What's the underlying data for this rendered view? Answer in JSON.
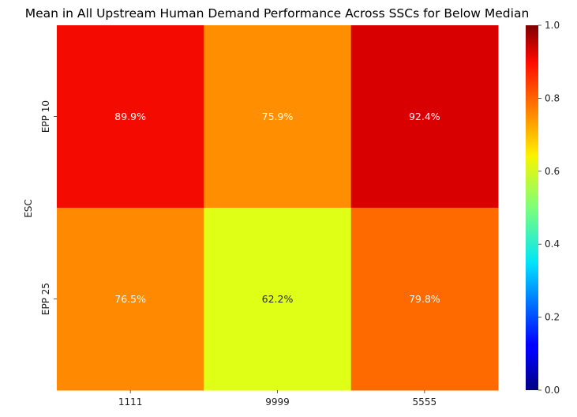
{
  "chart_data": {
    "type": "heatmap",
    "title": "Mean in All Upstream Human Demand Performance Across SSCs for Below Median",
    "xlabel": "",
    "ylabel": "ESC",
    "x_categories": [
      "1111",
      "9999",
      "5555"
    ],
    "y_categories": [
      "EPP 10",
      "EPP 25"
    ],
    "values": [
      [
        0.899,
        0.759,
        0.924
      ],
      [
        0.765,
        0.622,
        0.798
      ]
    ],
    "cell_labels": [
      [
        "89.9%",
        "75.9%",
        "92.4%"
      ],
      [
        "76.5%",
        "62.2%",
        "79.8%"
      ]
    ],
    "cell_label_colors": [
      [
        "#ffffff",
        "#ffffff",
        "#ffffff"
      ],
      [
        "#ffffff",
        "#262626",
        "#ffffff"
      ]
    ],
    "colormap": "jet",
    "vmin": 0.0,
    "vmax": 1.0,
    "colorbar_ticks": [
      "0.0",
      "0.2",
      "0.4",
      "0.6",
      "0.8",
      "1.0"
    ],
    "colorbar_tick_values": [
      0.0,
      0.2,
      0.4,
      0.6,
      0.8,
      1.0
    ]
  }
}
